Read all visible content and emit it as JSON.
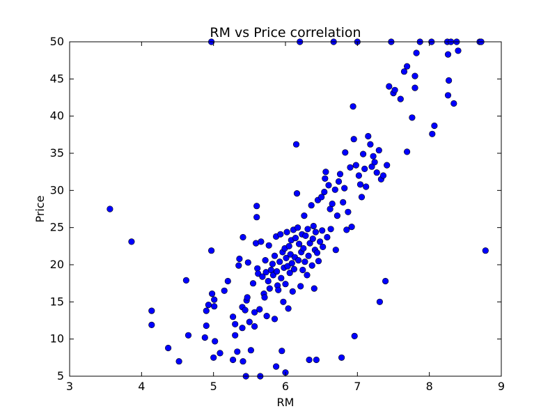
{
  "chart_data": {
    "type": "scatter",
    "title": "RM vs Price correlation",
    "xlabel": "RM",
    "ylabel": "Price",
    "xlim": [
      3,
      9
    ],
    "ylim": [
      5,
      50
    ],
    "xticks": [
      "3",
      "4",
      "5",
      "6",
      "7",
      "8",
      "9"
    ],
    "yticks": [
      "5",
      "10",
      "15",
      "20",
      "25",
      "30",
      "35",
      "40",
      "45",
      "50"
    ],
    "grid": false,
    "legend": false,
    "marker_color": "#0000ff",
    "marker_edge": "#000000",
    "series": [
      {
        "points": [
          [
            3.56,
            27.5
          ],
          [
            3.86,
            23.1
          ],
          [
            4.14,
            13.8
          ],
          [
            4.14,
            11.9
          ],
          [
            4.37,
            8.8
          ],
          [
            4.52,
            7.0
          ],
          [
            4.62,
            17.9
          ],
          [
            4.65,
            10.5
          ],
          [
            4.88,
            10.2
          ],
          [
            4.9,
            11.8
          ],
          [
            4.9,
            13.8
          ],
          [
            4.93,
            14.6
          ],
          [
            4.97,
            50.0
          ],
          [
            4.97,
            21.9
          ],
          [
            4.98,
            16.1
          ],
          [
            5.0,
            7.5
          ],
          [
            5.01,
            15.3
          ],
          [
            5.01,
            14.4
          ],
          [
            5.02,
            9.7
          ],
          [
            5.09,
            8.1
          ],
          [
            5.15,
            16.5
          ],
          [
            5.2,
            17.8
          ],
          [
            5.27,
            13.0
          ],
          [
            5.27,
            7.2
          ],
          [
            5.3,
            10.5
          ],
          [
            5.3,
            12.0
          ],
          [
            5.33,
            8.3
          ],
          [
            5.35,
            19.9
          ],
          [
            5.36,
            20.8
          ],
          [
            5.4,
            11.5
          ],
          [
            5.4,
            14.3
          ],
          [
            5.41,
            23.7
          ],
          [
            5.41,
            7.0
          ],
          [
            5.44,
            13.9
          ],
          [
            5.45,
            5.0
          ],
          [
            5.46,
            15.2
          ],
          [
            5.47,
            15.6
          ],
          [
            5.48,
            20.3
          ],
          [
            5.5,
            12.3
          ],
          [
            5.52,
            8.5
          ],
          [
            5.55,
            17.5
          ],
          [
            5.57,
            13.6
          ],
          [
            5.57,
            11.7
          ],
          [
            5.59,
            22.9
          ],
          [
            5.6,
            27.9
          ],
          [
            5.6,
            26.4
          ],
          [
            5.61,
            19.5
          ],
          [
            5.62,
            18.8
          ],
          [
            5.64,
            14.0
          ],
          [
            5.65,
            5.0
          ],
          [
            5.66,
            23.1
          ],
          [
            5.68,
            18.4
          ],
          [
            5.7,
            16.1
          ],
          [
            5.71,
            15.6
          ],
          [
            5.72,
            20.6
          ],
          [
            5.73,
            19.0
          ],
          [
            5.74,
            13.1
          ],
          [
            5.76,
            17.8
          ],
          [
            5.77,
            22.6
          ],
          [
            5.78,
            16.8
          ],
          [
            5.8,
            19.3
          ],
          [
            5.82,
            20.1
          ],
          [
            5.83,
            18.6
          ],
          [
            5.85,
            21.2
          ],
          [
            5.85,
            12.7
          ],
          [
            5.87,
            23.8
          ],
          [
            5.87,
            6.3
          ],
          [
            5.88,
            19.1
          ],
          [
            5.89,
            17.2
          ],
          [
            5.9,
            16.6
          ],
          [
            5.92,
            20.4
          ],
          [
            5.93,
            24.1
          ],
          [
            5.94,
            18.2
          ],
          [
            5.95,
            8.4
          ],
          [
            5.96,
            21.7
          ],
          [
            5.97,
            15.0
          ],
          [
            5.98,
            19.6
          ],
          [
            5.99,
            22.2
          ],
          [
            6.0,
            5.5
          ],
          [
            6.0,
            17.4
          ],
          [
            6.01,
            20.9
          ],
          [
            6.02,
            24.4
          ],
          [
            6.03,
            19.8
          ],
          [
            6.04,
            14.1
          ],
          [
            6.05,
            22.5
          ],
          [
            6.06,
            18.9
          ],
          [
            6.07,
            21.4
          ],
          [
            6.08,
            23.3
          ],
          [
            6.09,
            20.2
          ],
          [
            6.1,
            16.4
          ],
          [
            6.11,
            24.7
          ],
          [
            6.12,
            19.4
          ],
          [
            6.13,
            21.0
          ],
          [
            6.14,
            23.6
          ],
          [
            6.15,
            36.2
          ],
          [
            6.16,
            29.6
          ],
          [
            6.17,
            25.0
          ],
          [
            6.18,
            20.6
          ],
          [
            6.19,
            22.8
          ],
          [
            6.2,
            50.0
          ],
          [
            6.21,
            17.1
          ],
          [
            6.22,
            21.7
          ],
          [
            6.23,
            24.1
          ],
          [
            6.24,
            19.3
          ],
          [
            6.25,
            22.2
          ],
          [
            6.26,
            26.6
          ],
          [
            6.27,
            20.4
          ],
          [
            6.28,
            23.9
          ],
          [
            6.3,
            18.6
          ],
          [
            6.31,
            24.8
          ],
          [
            6.32,
            21.2
          ],
          [
            6.33,
            7.2
          ],
          [
            6.34,
            22.9
          ],
          [
            6.36,
            28.0
          ],
          [
            6.37,
            19.9
          ],
          [
            6.38,
            23.5
          ],
          [
            6.39,
            25.2
          ],
          [
            6.4,
            16.8
          ],
          [
            6.41,
            22.0
          ],
          [
            6.42,
            24.4
          ],
          [
            6.43,
            7.2
          ],
          [
            6.44,
            21.6
          ],
          [
            6.45,
            28.7
          ],
          [
            6.46,
            20.5
          ],
          [
            6.48,
            23.1
          ],
          [
            6.5,
            29.1
          ],
          [
            6.51,
            24.6
          ],
          [
            6.52,
            22.4
          ],
          [
            6.54,
            29.8
          ],
          [
            6.55,
            31.6
          ],
          [
            6.56,
            32.5
          ],
          [
            6.58,
            23.7
          ],
          [
            6.6,
            30.7
          ],
          [
            6.62,
            27.5
          ],
          [
            6.63,
            24.8
          ],
          [
            6.65,
            28.2
          ],
          [
            6.67,
            50.0
          ],
          [
            6.69,
            30.1
          ],
          [
            6.7,
            22.0
          ],
          [
            6.72,
            26.6
          ],
          [
            6.74,
            31.2
          ],
          [
            6.76,
            32.2
          ],
          [
            6.78,
            7.5
          ],
          [
            6.8,
            28.4
          ],
          [
            6.82,
            30.3
          ],
          [
            6.83,
            35.1
          ],
          [
            6.85,
            24.7
          ],
          [
            6.87,
            27.1
          ],
          [
            6.9,
            33.1
          ],
          [
            6.92,
            25.1
          ],
          [
            6.94,
            41.3
          ],
          [
            6.95,
            36.9
          ],
          [
            6.96,
            10.4
          ],
          [
            6.98,
            33.4
          ],
          [
            7.0,
            50.0
          ],
          [
            7.02,
            32.0
          ],
          [
            7.04,
            30.8
          ],
          [
            7.06,
            29.1
          ],
          [
            7.08,
            34.9
          ],
          [
            7.1,
            32.9
          ],
          [
            7.12,
            30.5
          ],
          [
            7.15,
            37.3
          ],
          [
            7.18,
            36.2
          ],
          [
            7.2,
            33.2
          ],
          [
            7.22,
            34.6
          ],
          [
            7.24,
            33.8
          ],
          [
            7.27,
            32.4
          ],
          [
            7.3,
            35.4
          ],
          [
            7.31,
            15.0
          ],
          [
            7.33,
            31.5
          ],
          [
            7.36,
            32.0
          ],
          [
            7.39,
            17.8
          ],
          [
            7.41,
            33.4
          ],
          [
            7.44,
            44.0
          ],
          [
            7.47,
            50.0
          ],
          [
            7.5,
            43.1
          ],
          [
            7.52,
            43.5
          ],
          [
            7.6,
            42.3
          ],
          [
            7.65,
            46.0
          ],
          [
            7.69,
            46.7
          ],
          [
            7.69,
            35.2
          ],
          [
            7.76,
            39.8
          ],
          [
            7.8,
            45.4
          ],
          [
            7.8,
            43.8
          ],
          [
            7.82,
            48.5
          ],
          [
            7.87,
            50.0
          ],
          [
            8.03,
            50.0
          ],
          [
            8.04,
            37.6
          ],
          [
            8.07,
            38.7
          ],
          [
            8.25,
            50.0
          ],
          [
            8.26,
            48.3
          ],
          [
            8.26,
            42.8
          ],
          [
            8.27,
            44.8
          ],
          [
            8.3,
            50.0
          ],
          [
            8.34,
            41.7
          ],
          [
            8.38,
            50.0
          ],
          [
            8.4,
            48.8
          ],
          [
            8.7,
            50.0
          ],
          [
            8.72,
            50.0
          ],
          [
            8.78,
            21.9
          ]
        ]
      }
    ]
  }
}
